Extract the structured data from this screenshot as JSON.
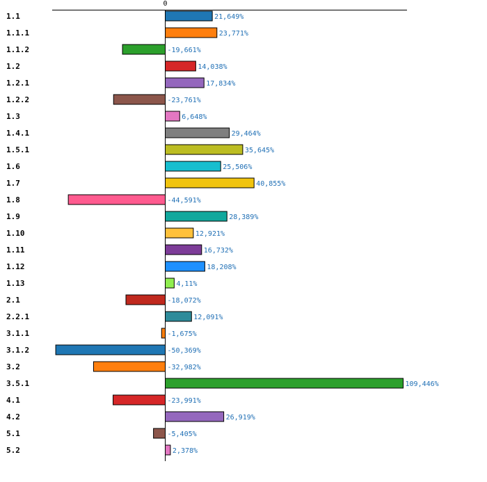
{
  "chart_data": {
    "type": "bar",
    "orientation": "horizontal",
    "title": "",
    "xlabel": "",
    "ylabel": "",
    "zero_label": "0",
    "grid": false,
    "legend": "none",
    "xlim": [
      -75,
      115
    ],
    "categories": [
      "1.1",
      "1.1.1",
      "1.1.2",
      "1.2",
      "1.2.1",
      "1.2.2",
      "1.3",
      "1.4.1",
      "1.5.1",
      "1.6",
      "1.7",
      "1.8",
      "1.9",
      "1.10",
      "1.11",
      "1.12",
      "1.13",
      "2.1",
      "2.2.1",
      "3.1.1",
      "3.1.2",
      "3.2",
      "3.5.1",
      "4.1",
      "4.2",
      "5.1",
      "5.2"
    ],
    "values": [
      21.649,
      23.771,
      -19.661,
      14.038,
      17.834,
      -23.761,
      6.648,
      29.464,
      35.645,
      25.506,
      40.855,
      -44.591,
      28.389,
      12.921,
      16.732,
      18.208,
      4.11,
      -18.072,
      12.091,
      -1.675,
      -50.369,
      -32.982,
      109.446,
      -23.991,
      26.919,
      -5.405,
      2.378
    ],
    "value_labels": [
      "21,649%",
      "23,771%",
      "-19,661%",
      "14,038%",
      "17,834%",
      "-23,761%",
      "6,648%",
      "29,464%",
      "35,645%",
      "25,506%",
      "40,855%",
      "-44,591%",
      "28,389%",
      "12,921%",
      "16,732%",
      "18,208%",
      "4,11%",
      "-18,072%",
      "12,091%",
      "-1,675%",
      "-50,369%",
      "-32,982%",
      "109,446%",
      "-23,991%",
      "26,919%",
      "-5,405%",
      "2,378%"
    ],
    "colors": [
      "#1f77b4",
      "#ff7f0e",
      "#2ca02c",
      "#d62728",
      "#9467bd",
      "#8c564b",
      "#e377c2",
      "#7f7f7f",
      "#bcbd22",
      "#17becf",
      "#f1c40f",
      "#ff5b8f",
      "#12a89d",
      "#ffc13b",
      "#7d3c98",
      "#1e90ff",
      "#90ee50",
      "#c0291e",
      "#2e8b9a",
      "#ff7f0e",
      "#1f77b4",
      "#ff7f0e",
      "#2ca02c",
      "#d62728",
      "#9467bd",
      "#8c564b",
      "#e377c2"
    ],
    "label_color": "#1f6fb5",
    "axis_color": "#000000",
    "bar_stroke": "#000000"
  }
}
